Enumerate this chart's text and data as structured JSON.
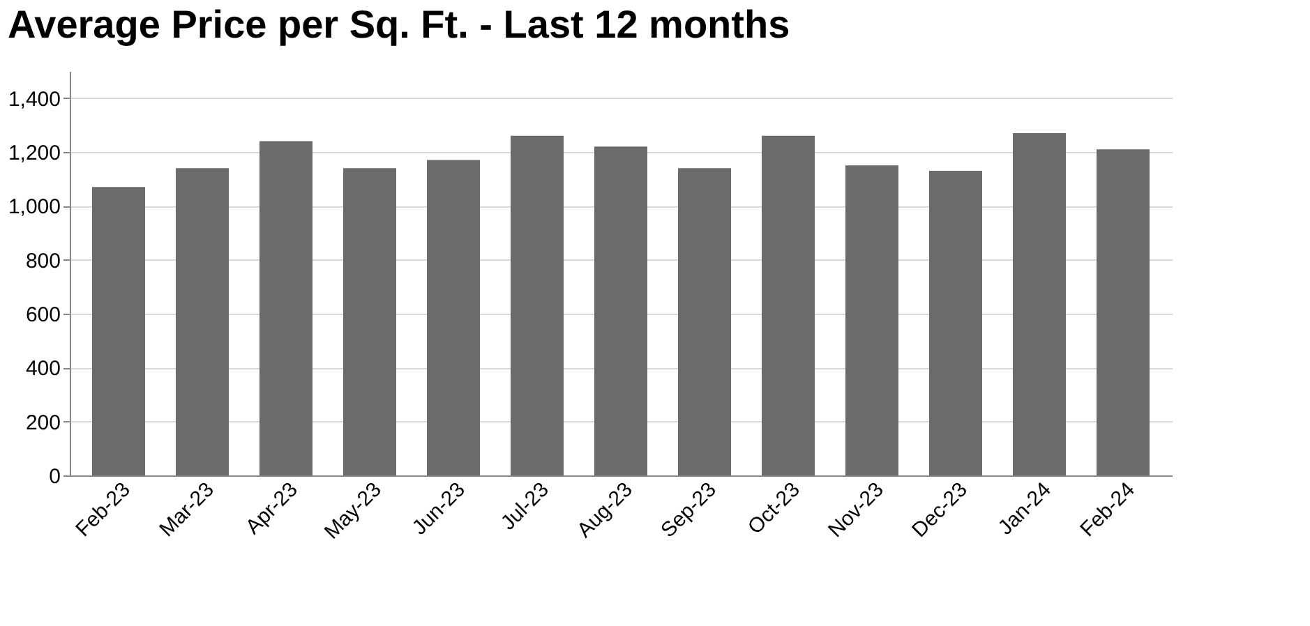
{
  "chart_data": {
    "type": "bar",
    "title": "Average Price per Sq. Ft. - Last 12 months",
    "categories": [
      "Feb-23",
      "Mar-23",
      "Apr-23",
      "May-23",
      "Jun-23",
      "Jul-23",
      "Aug-23",
      "Sep-23",
      "Oct-23",
      "Nov-23",
      "Dec-23",
      "Jan-24",
      "Feb-24"
    ],
    "values": [
      1070,
      1140,
      1240,
      1140,
      1170,
      1260,
      1220,
      1140,
      1260,
      1150,
      1130,
      1270,
      1210
    ],
    "color": "#6b6b6b",
    "ylim": [
      0,
      1500
    ],
    "yticks": [
      0,
      {
        "value": 200,
        "label": "200"
      },
      {
        "value": 400,
        "label": "400"
      },
      {
        "value": 600,
        "label": "600"
      },
      {
        "value": 800,
        "label": "800"
      },
      {
        "value": 1000,
        "label": "1,000"
      },
      {
        "value": 1200,
        "label": "1,200"
      },
      {
        "value": 1400,
        "label": "1,400"
      }
    ],
    "grid": "y"
  }
}
